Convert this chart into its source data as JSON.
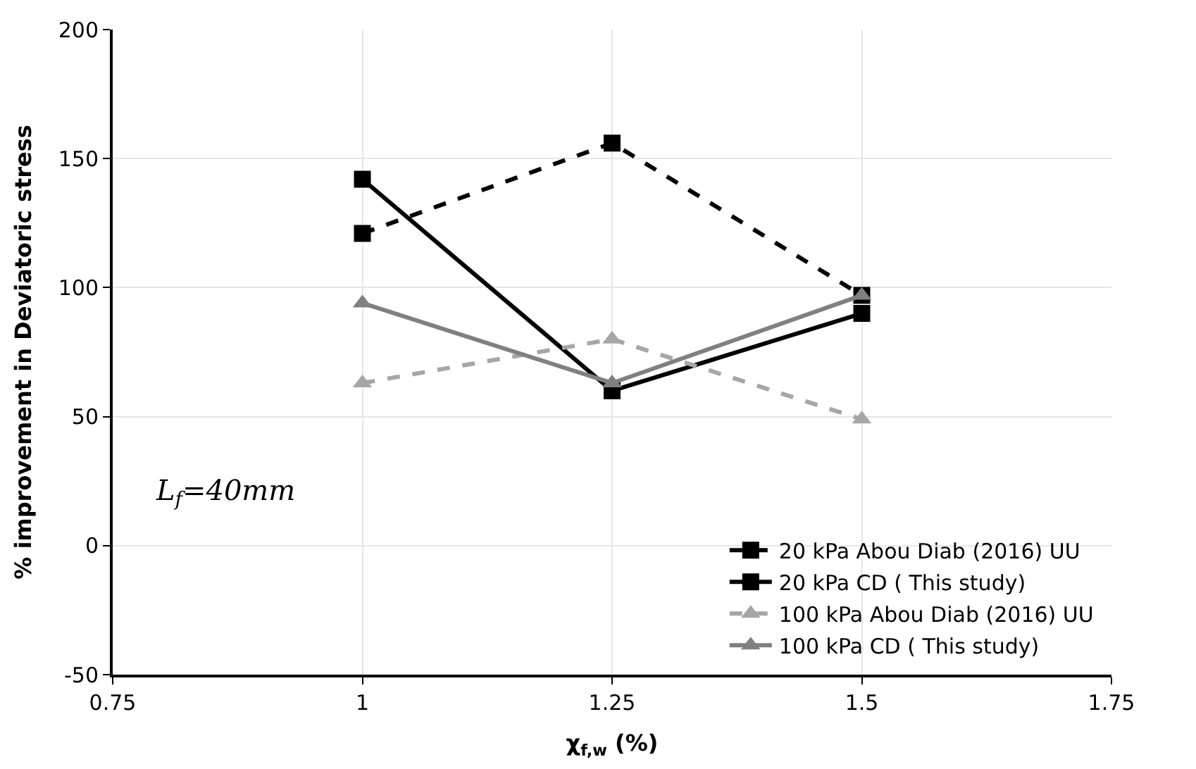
{
  "chart_data": {
    "type": "line",
    "xlabel": "χ$_{f,w}$ (%)",
    "ylabel": "% improvement in Deviatoric stress",
    "x": [
      1,
      1.25,
      1.5
    ],
    "series": [
      {
        "name": "20 kPa Abou Diab (2016) UU",
        "color": "#000000",
        "marker": "square",
        "line_style": "dashed",
        "values": [
          121,
          156,
          97
        ]
      },
      {
        "name": "20 kPa CD ( This study)",
        "color": "#000000",
        "marker": "square",
        "line_style": "solid",
        "values": [
          142,
          60,
          90
        ]
      },
      {
        "name": "100 kPa Abou Diab (2016) UU",
        "color": "#a6a6a6",
        "marker": "triangle",
        "line_style": "dashed",
        "values": [
          63,
          80,
          49
        ]
      },
      {
        "name": "100 kPa CD ( This study)",
        "color": "#808080",
        "marker": "triangle",
        "line_style": "solid",
        "values": [
          94,
          63,
          97
        ]
      }
    ],
    "xlim": [
      0.75,
      1.75
    ],
    "xticks": [
      0.75,
      1,
      1.25,
      1.5,
      1.75
    ],
    "ylim": [
      -50,
      200
    ],
    "yticks": [
      -50,
      0,
      50,
      100,
      150,
      200
    ],
    "grid": true,
    "legend": "bottom right",
    "annotations": [
      "L$_{f}$=40mm"
    ]
  }
}
